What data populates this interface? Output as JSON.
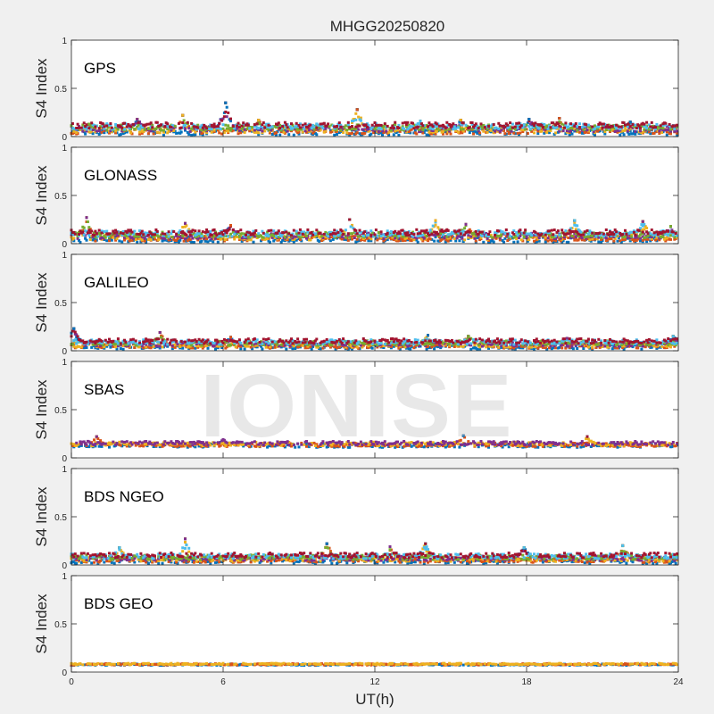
{
  "figure": {
    "title": "MHGG20250820",
    "xlabel": "UT(h)",
    "watermark": "IONISE"
  },
  "colors": [
    "#0072BD",
    "#D95319",
    "#EDB120",
    "#7E2F8E",
    "#77AC30",
    "#4DBEEE",
    "#A2142F"
  ],
  "chart_data": [
    {
      "type": "scatter",
      "title": "GPS",
      "ylabel": "S4 Index",
      "xlim": [
        0,
        24
      ],
      "ylim": [
        0,
        1
      ],
      "xticks": [
        0,
        6,
        12,
        18,
        24
      ],
      "yticks": [
        0,
        0.5,
        1
      ],
      "baseline": 0.08,
      "noise": 0.03,
      "series_count": 7,
      "peaks": [
        {
          "x": 0.7,
          "y": 0.13
        },
        {
          "x": 2.6,
          "y": 0.18
        },
        {
          "x": 4.4,
          "y": 0.22
        },
        {
          "x": 6.1,
          "y": 0.35
        },
        {
          "x": 7.4,
          "y": 0.17
        },
        {
          "x": 11.3,
          "y": 0.28
        },
        {
          "x": 13.8,
          "y": 0.16
        },
        {
          "x": 15.4,
          "y": 0.17
        },
        {
          "x": 18.1,
          "y": 0.18
        },
        {
          "x": 19.3,
          "y": 0.19
        },
        {
          "x": 22.1,
          "y": 0.15
        }
      ]
    },
    {
      "type": "scatter",
      "title": "GLONASS",
      "ylabel": "S4 Index",
      "xlim": [
        0,
        24
      ],
      "ylim": [
        0,
        1
      ],
      "xticks": [
        0,
        6,
        12,
        18,
        24
      ],
      "yticks": [
        0,
        0.5,
        1
      ],
      "baseline": 0.08,
      "noise": 0.03,
      "series_count": 7,
      "peaks": [
        {
          "x": 0.6,
          "y": 0.27
        },
        {
          "x": 4.5,
          "y": 0.21
        },
        {
          "x": 6.3,
          "y": 0.19
        },
        {
          "x": 11.0,
          "y": 0.25
        },
        {
          "x": 14.4,
          "y": 0.24
        },
        {
          "x": 15.6,
          "y": 0.2
        },
        {
          "x": 19.9,
          "y": 0.24
        },
        {
          "x": 22.6,
          "y": 0.23
        },
        {
          "x": 23.7,
          "y": 0.18
        }
      ]
    },
    {
      "type": "scatter",
      "title": "GALILEO",
      "ylabel": "S4 Index",
      "xlim": [
        0,
        24
      ],
      "ylim": [
        0,
        1
      ],
      "xticks": [
        0,
        6,
        12,
        18,
        24
      ],
      "yticks": [
        0,
        0.5,
        1
      ],
      "baseline": 0.07,
      "noise": 0.025,
      "series_count": 7,
      "peaks": [
        {
          "x": 0.1,
          "y": 0.23
        },
        {
          "x": 3.5,
          "y": 0.19
        },
        {
          "x": 6.3,
          "y": 0.14
        },
        {
          "x": 14.1,
          "y": 0.16
        },
        {
          "x": 15.7,
          "y": 0.15
        },
        {
          "x": 19.6,
          "y": 0.13
        },
        {
          "x": 23.8,
          "y": 0.15
        }
      ]
    },
    {
      "type": "scatter",
      "title": "SBAS",
      "ylabel": "S4 Index",
      "xlim": [
        0,
        24
      ],
      "ylim": [
        0,
        1
      ],
      "xticks": [
        0,
        6,
        12,
        18,
        24
      ],
      "yticks": [
        0,
        0.5,
        1
      ],
      "baseline": 0.14,
      "noise": 0.02,
      "series_count": 4,
      "peaks": [
        {
          "x": 1.0,
          "y": 0.22
        },
        {
          "x": 6.0,
          "y": 0.19
        },
        {
          "x": 15.5,
          "y": 0.23
        },
        {
          "x": 20.4,
          "y": 0.22
        }
      ]
    },
    {
      "type": "scatter",
      "title": "BDS NGEO",
      "ylabel": "S4 Index",
      "xlim": [
        0,
        24
      ],
      "ylim": [
        0,
        1
      ],
      "xticks": [
        0,
        6,
        12,
        18,
        24
      ],
      "yticks": [
        0,
        0.5,
        1
      ],
      "baseline": 0.07,
      "noise": 0.025,
      "series_count": 7,
      "peaks": [
        {
          "x": 1.9,
          "y": 0.18
        },
        {
          "x": 4.5,
          "y": 0.27
        },
        {
          "x": 10.1,
          "y": 0.22
        },
        {
          "x": 12.6,
          "y": 0.19
        },
        {
          "x": 14.0,
          "y": 0.22
        },
        {
          "x": 17.9,
          "y": 0.18
        },
        {
          "x": 21.8,
          "y": 0.2
        }
      ]
    },
    {
      "type": "scatter",
      "title": "BDS GEO",
      "ylabel": "S4 Index",
      "xlim": [
        0,
        24
      ],
      "ylim": [
        0,
        1
      ],
      "xticks": [
        0,
        6,
        12,
        18,
        24
      ],
      "yticks": [
        0,
        0.5,
        1
      ],
      "baseline": 0.08,
      "noise": 0.008,
      "series_count": 3,
      "peaks": []
    }
  ]
}
